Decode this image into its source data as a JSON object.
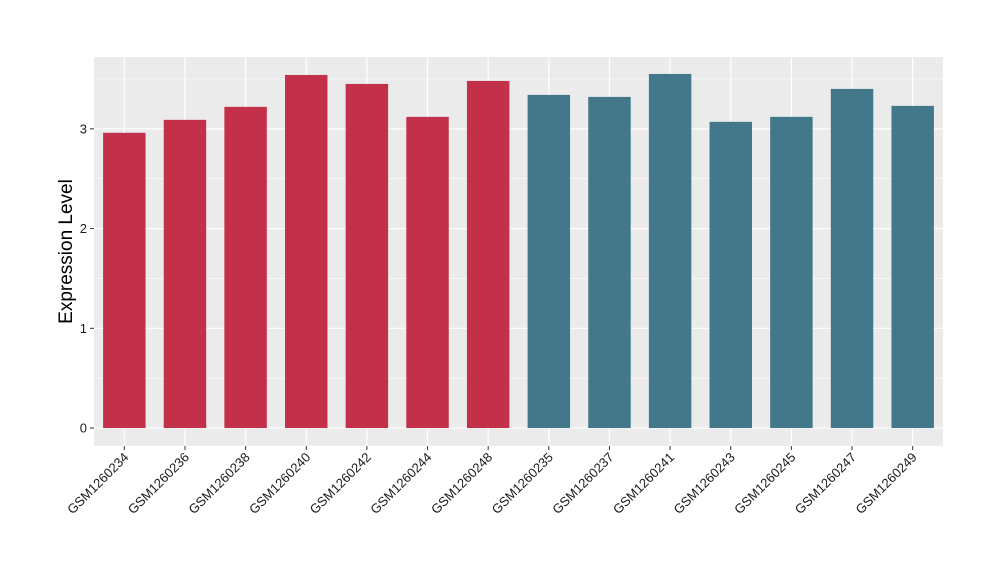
{
  "chart_data": {
    "type": "bar",
    "title": "",
    "xlabel": "",
    "ylabel": "Expression Level",
    "ylim": [
      -0.18,
      3.72
    ],
    "yticks": [
      0,
      1,
      2,
      3
    ],
    "grid": true,
    "legend": "none",
    "categories": [
      "GSM1260234",
      "GSM1260236",
      "GSM1260238",
      "GSM1260240",
      "GSM1260242",
      "GSM1260244",
      "GSM1260248",
      "GSM1260235",
      "GSM1260237",
      "GSM1260241",
      "GSM1260243",
      "GSM1260245",
      "GSM1260247",
      "GSM1260249"
    ],
    "values": [
      2.96,
      3.09,
      3.22,
      3.54,
      3.45,
      3.12,
      3.48,
      3.34,
      3.32,
      3.55,
      3.07,
      3.12,
      3.4,
      3.23
    ],
    "group_of_bar": [
      "a",
      "a",
      "a",
      "a",
      "a",
      "a",
      "a",
      "b",
      "b",
      "b",
      "b",
      "b",
      "b",
      "b"
    ],
    "colors": {
      "a": "#C3304A",
      "b": "#43788A",
      "panel_background": "#EBEBEB",
      "grid": "#FFFFFF"
    }
  }
}
